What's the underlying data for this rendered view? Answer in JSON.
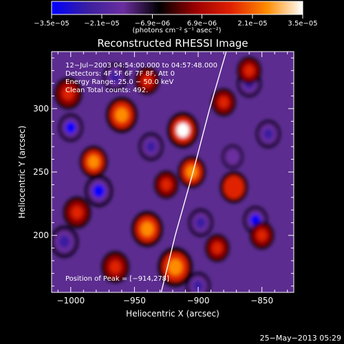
{
  "chart_data": {
    "type": "heatmap",
    "title": "Reconstructed RHESSI Image",
    "xlabel": "Heliocentric X (arcsec)",
    "ylabel": "Heliocentric Y (arcsec)",
    "xlim": [
      -1015,
      -825
    ],
    "ylim": [
      155,
      345
    ],
    "x_ticks": [
      -1000,
      -950,
      -900,
      -850
    ],
    "x_tick_labels": [
      "−1000",
      "−950",
      "−900",
      "−850"
    ],
    "y_ticks": [
      200,
      250,
      300
    ],
    "y_tick_labels": [
      "200",
      "250",
      "300"
    ],
    "colorbar": {
      "range": [
        -3.5e-05,
        3.5e-05
      ],
      "ticks": [
        -3.5e-05,
        -2.1e-05,
        -6.9e-06,
        6.9e-06,
        2.1e-05,
        3.5e-05
      ],
      "tick_labels": [
        "−3.5e−05",
        "−2.1e−05",
        "−6.9e−06",
        "6.9e−06",
        "2.1e−05",
        "3.5e−05"
      ],
      "units": "(photons cm⁻² s⁻¹ asec⁻²)",
      "colors": [
        "#0000ff",
        "#3a1fa0",
        "#6a2e9e",
        "#000000",
        "#9a0000",
        "#e02000",
        "#ff8c00",
        "#ffffff"
      ]
    },
    "annotations": [
      "12−Jul−2003 04:54:00.000 to 04:57:48.000",
      "Detectors: 4F 5F 6F 7F 8F, Att 0",
      "Energy Range: 25.0 − 50.0 keV",
      "Clean     Total counts: 492."
    ],
    "peak_label": "Position of Peak = [−914,278]",
    "peak": [
      -914,
      278
    ],
    "limb_curve": [
      [
        -929,
        155
      ],
      [
        -918,
        200
      ],
      [
        -904,
        250
      ],
      [
        -891,
        300
      ],
      [
        -878,
        345
      ]
    ],
    "hotspots": [
      {
        "x": -912,
        "y": 283,
        "r": 9,
        "v": 3.5e-05
      },
      {
        "x": -905,
        "y": 250,
        "r": 8,
        "v": 2.4e-05
      },
      {
        "x": -960,
        "y": 295,
        "r": 9,
        "v": 2.6e-05
      },
      {
        "x": -918,
        "y": 175,
        "r": 10,
        "v": 2.2e-05
      },
      {
        "x": -982,
        "y": 258,
        "r": 8,
        "v": 2e-05
      },
      {
        "x": -940,
        "y": 205,
        "r": 9,
        "v": 2.1e-05
      },
      {
        "x": -872,
        "y": 238,
        "r": 8,
        "v": 1.9e-05
      },
      {
        "x": -1002,
        "y": 312,
        "r": 8,
        "v": 1.8e-05
      },
      {
        "x": -940,
        "y": 322,
        "r": 7,
        "v": 1.6e-05
      },
      {
        "x": -880,
        "y": 305,
        "r": 7,
        "v": 1.5e-05
      },
      {
        "x": -995,
        "y": 218,
        "r": 8,
        "v": 1.7e-05
      },
      {
        "x": -850,
        "y": 200,
        "r": 7,
        "v": 1.4e-05
      },
      {
        "x": -965,
        "y": 175,
        "r": 8,
        "v": 1.5e-05
      },
      {
        "x": -860,
        "y": 330,
        "r": 7,
        "v": 1.3e-05
      },
      {
        "x": -925,
        "y": 240,
        "r": 7,
        "v": 1.6e-05
      },
      {
        "x": -885,
        "y": 190,
        "r": 7,
        "v": 1.3e-05
      }
    ],
    "coldspots": [
      {
        "x": -1000,
        "y": 285,
        "r": 7,
        "v": -3.3e-05
      },
      {
        "x": -978,
        "y": 235,
        "r": 8,
        "v": -3e-05
      },
      {
        "x": -855,
        "y": 212,
        "r": 7,
        "v": -3.5e-05
      },
      {
        "x": -937,
        "y": 270,
        "r": 7,
        "v": -2.6e-05
      },
      {
        "x": -845,
        "y": 280,
        "r": 7,
        "v": -2.7e-05
      },
      {
        "x": -898,
        "y": 210,
        "r": 7,
        "v": -2.2e-05
      },
      {
        "x": -860,
        "y": 320,
        "r": 7,
        "v": -2.3e-05
      },
      {
        "x": -965,
        "y": 325,
        "r": 7,
        "v": -2e-05
      },
      {
        "x": -1005,
        "y": 195,
        "r": 8,
        "v": -2.4e-05
      },
      {
        "x": -900,
        "y": 160,
        "r": 7,
        "v": -2e-05
      },
      {
        "x": -873,
        "y": 262,
        "r": 6,
        "v": -1.9e-05
      }
    ]
  },
  "footer": {
    "date": "25−May−2013 05:29"
  }
}
